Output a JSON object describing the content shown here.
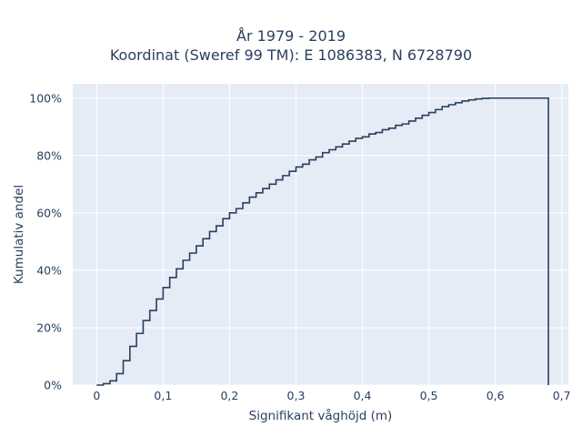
{
  "chart_data": {
    "type": "line",
    "step": true,
    "title": "År 1979 - 2019",
    "subtitle": "Koordinat (Sweref 99 TM): E 1086383, N 6728790",
    "xlabel": "Signifikant våghöjd (m)",
    "ylabel": "Kumulativ andel",
    "xlim": [
      -0.036,
      0.71
    ],
    "ylim": [
      0,
      1.05
    ],
    "x_ticks": [
      0,
      0.1,
      0.2,
      0.3,
      0.4,
      0.5,
      0.6,
      0.7
    ],
    "x_tick_labels": [
      "0",
      "0,1",
      "0,2",
      "0,3",
      "0,4",
      "0,5",
      "0,6",
      "0,7"
    ],
    "y_ticks": [
      0,
      0.2,
      0.4,
      0.6,
      0.8,
      1.0
    ],
    "y_tick_labels": [
      "0%",
      "20%",
      "40%",
      "60%",
      "80%",
      "100%"
    ],
    "grid": true,
    "line_color": "#2a3f5f",
    "background_color": "#e5ecf6",
    "x": [
      0,
      0.01,
      0.02,
      0.03,
      0.04,
      0.05,
      0.06,
      0.07,
      0.08,
      0.09,
      0.1,
      0.11,
      0.12,
      0.13,
      0.14,
      0.15,
      0.16,
      0.17,
      0.18,
      0.19,
      0.2,
      0.21,
      0.22,
      0.23,
      0.24,
      0.25,
      0.26,
      0.27,
      0.28,
      0.29,
      0.3,
      0.31,
      0.32,
      0.33,
      0.34,
      0.35,
      0.36,
      0.37,
      0.38,
      0.39,
      0.4,
      0.41,
      0.42,
      0.43,
      0.44,
      0.45,
      0.46,
      0.47,
      0.48,
      0.49,
      0.5,
      0.51,
      0.52,
      0.53,
      0.54,
      0.55,
      0.56,
      0.57,
      0.58,
      0.59,
      0.6,
      0.68
    ],
    "y": [
      0,
      0.005,
      0.015,
      0.04,
      0.085,
      0.135,
      0.18,
      0.225,
      0.26,
      0.3,
      0.34,
      0.375,
      0.405,
      0.435,
      0.46,
      0.485,
      0.51,
      0.535,
      0.555,
      0.58,
      0.6,
      0.615,
      0.635,
      0.655,
      0.67,
      0.685,
      0.7,
      0.715,
      0.73,
      0.745,
      0.76,
      0.77,
      0.785,
      0.795,
      0.81,
      0.82,
      0.83,
      0.84,
      0.85,
      0.86,
      0.865,
      0.875,
      0.88,
      0.89,
      0.895,
      0.905,
      0.91,
      0.92,
      0.93,
      0.94,
      0.95,
      0.96,
      0.97,
      0.977,
      0.984,
      0.99,
      0.994,
      0.997,
      0.999,
      1.0,
      1.0,
      1.0
    ]
  }
}
